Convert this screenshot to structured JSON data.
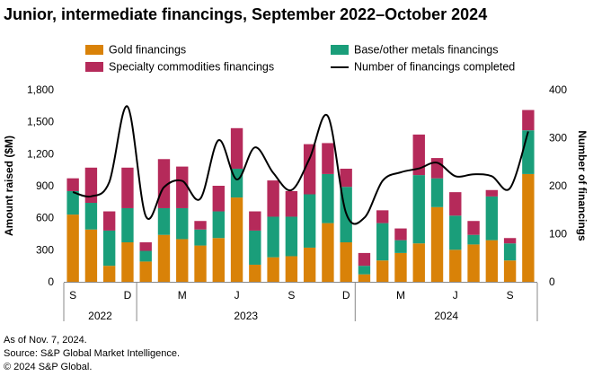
{
  "title": "Junior, intermediate financings, September 2022–October 2024",
  "colors": {
    "gold": "#d98208",
    "base": "#1a9e7a",
    "specialty": "#b52a5a",
    "line": "#000000",
    "axis": "#888888"
  },
  "legend": {
    "gold": "Gold financings",
    "base": "Base/other metals financings",
    "specialty": "Specialty commodities financings",
    "line": "Number of financings completed"
  },
  "notes": {
    "asof": "As of Nov. 7, 2024.",
    "source": "Source: S&P Global Market Intelligence.",
    "copyright": "© 2024 S&P Global."
  },
  "chart_data": {
    "type": "bar",
    "stacked": true,
    "title": "Junior, intermediate financings, September 2022–October 2024",
    "ylabel": "Amount raised ($M)",
    "y2label": "Number of financings",
    "ylim": [
      0,
      1800
    ],
    "y2lim": [
      0,
      400
    ],
    "yticks": [
      0,
      300,
      600,
      900,
      1200,
      1500,
      1800
    ],
    "yticklabels": [
      "0",
      "300",
      "600",
      "900",
      "1,200",
      "1,500",
      "1,800"
    ],
    "y2ticks": [
      0,
      100,
      200,
      300,
      400
    ],
    "categories": [
      "Sep 2022",
      "Oct 2022",
      "Nov 2022",
      "Dec 2022",
      "Jan 2023",
      "Feb 2023",
      "Mar 2023",
      "Apr 2023",
      "May 2023",
      "Jun 2023",
      "Jul 2023",
      "Aug 2023",
      "Sep 2023",
      "Oct 2023",
      "Nov 2023",
      "Dec 2023",
      "Jan 2024",
      "Feb 2024",
      "Mar 2024",
      "Apr 2024",
      "May 2024",
      "Jun 2024",
      "Jul 2024",
      "Aug 2024",
      "Sep 2024",
      "Oct 2024"
    ],
    "month_ticks": [
      {
        "index": 0,
        "label": "S"
      },
      {
        "index": 3,
        "label": "D"
      },
      {
        "index": 6,
        "label": "M"
      },
      {
        "index": 9,
        "label": "J"
      },
      {
        "index": 12,
        "label": "S"
      },
      {
        "index": 15,
        "label": "D"
      },
      {
        "index": 18,
        "label": "M"
      },
      {
        "index": 21,
        "label": "J"
      },
      {
        "index": 24,
        "label": "S"
      }
    ],
    "year_groups": [
      {
        "label": "2022",
        "start": 0,
        "end": 3
      },
      {
        "label": "2023",
        "start": 4,
        "end": 15
      },
      {
        "label": "2024",
        "start": 16,
        "end": 25
      }
    ],
    "series": [
      {
        "name": "Gold financings",
        "values": [
          630,
          490,
          150,
          370,
          190,
          440,
          400,
          340,
          410,
          790,
          160,
          230,
          240,
          320,
          550,
          370,
          70,
          200,
          270,
          360,
          700,
          300,
          350,
          390,
          200,
          1010
        ]
      },
      {
        "name": "Base/other metals financings",
        "values": [
          220,
          250,
          330,
          320,
          100,
          250,
          290,
          150,
          250,
          270,
          320,
          380,
          370,
          500,
          460,
          520,
          80,
          350,
          120,
          640,
          270,
          320,
          90,
          410,
          160,
          410
        ]
      },
      {
        "name": "Specialty commodities financings",
        "values": [
          120,
          330,
          180,
          380,
          80,
          460,
          390,
          80,
          240,
          380,
          180,
          340,
          240,
          470,
          290,
          170,
          120,
          120,
          110,
          380,
          190,
          220,
          130,
          60,
          50,
          190
        ]
      }
    ],
    "line": {
      "name": "Number of financings completed",
      "axis": "right",
      "values": [
        187,
        178,
        208,
        365,
        137,
        197,
        210,
        173,
        295,
        213,
        280,
        227,
        191,
        257,
        345,
        143,
        133,
        210,
        228,
        236,
        248,
        220,
        224,
        220,
        195,
        313
      ]
    }
  }
}
